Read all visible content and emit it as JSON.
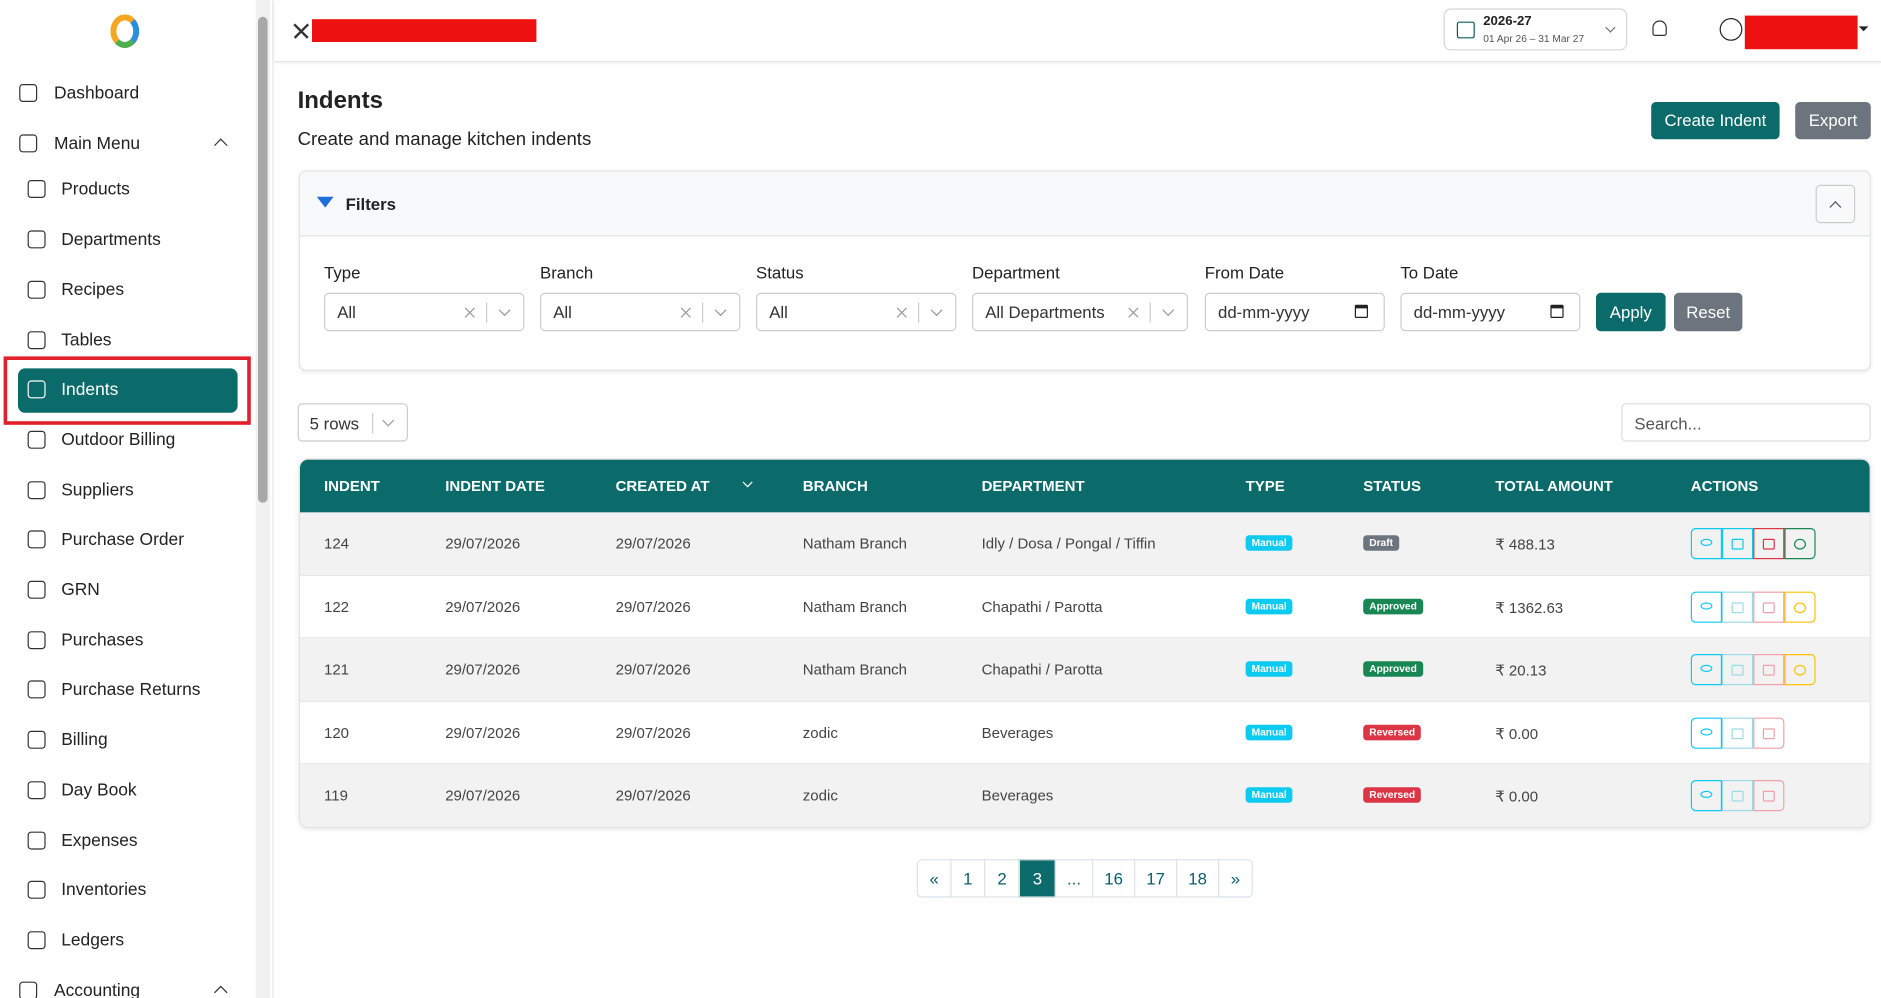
{
  "sidebar": {
    "items": [
      "Dashboard",
      "Main Menu",
      "Products",
      "Departments",
      "Recipes",
      "Tables",
      "Indents",
      "Outdoor Billing",
      "Suppliers",
      "Purchase Order",
      "GRN",
      "Purchases",
      "Purchase Returns",
      "Billing",
      "Day Book",
      "Expenses",
      "Inventories",
      "Ledgers",
      "Accounting"
    ]
  },
  "topbar": {
    "fiscal_year": "2026-27",
    "fiscal_range": "01 Apr 26 – 31 Mar 27"
  },
  "header": {
    "title": "Indents",
    "subtitle": "Create and manage kitchen indents",
    "buttons": [
      "Create Indent",
      "Export"
    ]
  },
  "filters": {
    "title": "Filters",
    "fields": [
      {
        "label": "Type",
        "value": "All"
      },
      {
        "label": "Branch",
        "value": "All"
      },
      {
        "label": "Status",
        "value": "All"
      },
      {
        "label": "Department",
        "value": "All Departments"
      },
      {
        "label": "From Date",
        "value": "dd-mm-yyyy"
      },
      {
        "label": "To Date",
        "value": "dd-mm-yyyy"
      }
    ],
    "buttons": [
      "Apply",
      "Reset"
    ]
  },
  "table_controls": {
    "rows": "5 rows",
    "search": "Search..."
  },
  "table": {
    "columns": [
      "INDENT",
      "INDENT DATE",
      "CREATED AT",
      "BRANCH",
      "DEPARTMENT",
      "TYPE",
      "STATUS",
      "TOTAL AMOUNT",
      "ACTIONS"
    ],
    "rows": [
      [
        "124",
        "29/07/2026",
        "29/07/2026",
        "Natham Branch",
        "Idly / Dosa / Pongal / Tiffin",
        "Manual",
        "Draft",
        "₹ 488.13"
      ],
      [
        "122",
        "29/07/2026",
        "29/07/2026",
        "Natham Branch",
        "Chapathi / Parotta",
        "Manual",
        "Approved",
        "₹ 1362.63"
      ],
      [
        "121",
        "29/07/2026",
        "29/07/2026",
        "Natham Branch",
        "Chapathi / Parotta",
        "Manual",
        "Approved",
        "₹ 20.13"
      ],
      [
        "120",
        "29/07/2026",
        "29/07/2026",
        "zodic",
        "Beverages",
        "Manual",
        "Reversed",
        "₹ 0.00"
      ],
      [
        "119",
        "29/07/2026",
        "29/07/2026",
        "zodic",
        "Beverages",
        "Manual",
        "Reversed",
        "₹ 0.00"
      ]
    ]
  },
  "pagination": [
    "«",
    "1",
    "2",
    "3",
    "...",
    "16",
    "17",
    "18",
    "»"
  ]
}
